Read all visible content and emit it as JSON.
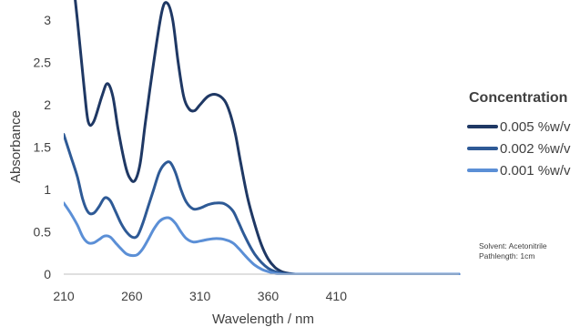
{
  "chart_data": {
    "type": "line",
    "xlabel": "Wavelength / nm",
    "ylabel": "Absorbance",
    "xlim": [
      210,
      500
    ],
    "ylim": [
      0,
      3
    ],
    "x_ticks": [
      210,
      260,
      310,
      360,
      410
    ],
    "y_ticks": [
      0,
      0.5,
      1,
      1.5,
      2,
      2.5,
      3
    ],
    "y_tick_labels": [
      "0",
      "0.5",
      "1",
      "1.5",
      "2",
      "2.5",
      "3"
    ],
    "grid": false,
    "legend": {
      "title": "Concentration",
      "placement": "right"
    },
    "series": [
      {
        "name": "0.005 %w/v",
        "color": "#1f3864",
        "x": [
          210,
          220,
          225,
          228,
          232,
          238,
          242,
          246,
          250,
          255,
          258,
          262,
          266,
          270,
          276,
          282,
          286,
          290,
          294,
          298,
          302,
          306,
          310,
          316,
          322,
          328,
          332,
          336,
          340,
          345,
          350,
          355,
          360,
          365,
          370,
          375,
          380,
          385,
          390,
          400,
          420,
          450,
          480,
          500
        ],
        "y": [
          4.5,
          3.0,
          2.2,
          1.8,
          1.8,
          2.1,
          2.25,
          2.1,
          1.7,
          1.3,
          1.15,
          1.1,
          1.3,
          1.8,
          2.5,
          3.1,
          3.2,
          3.0,
          2.5,
          2.1,
          1.95,
          1.93,
          2.0,
          2.1,
          2.12,
          2.05,
          1.9,
          1.65,
          1.3,
          0.9,
          0.6,
          0.35,
          0.18,
          0.08,
          0.03,
          0.01,
          0.0,
          0.0,
          0.0,
          0.0,
          0.0,
          0.0,
          0.0,
          0.0
        ]
      },
      {
        "name": "0.002 %w/v",
        "color": "#2e5a96",
        "x": [
          210,
          215,
          220,
          224,
          228,
          232,
          236,
          240,
          244,
          248,
          252,
          256,
          260,
          264,
          268,
          272,
          276,
          280,
          284,
          288,
          292,
          296,
          300,
          305,
          310,
          316,
          322,
          328,
          334,
          338,
          342,
          346,
          350,
          355,
          360,
          365,
          370,
          375,
          380,
          390,
          420,
          450,
          480,
          500
        ],
        "y": [
          1.65,
          1.4,
          1.15,
          0.88,
          0.73,
          0.72,
          0.8,
          0.9,
          0.87,
          0.74,
          0.6,
          0.5,
          0.44,
          0.45,
          0.6,
          0.8,
          1.0,
          1.2,
          1.3,
          1.32,
          1.2,
          1.0,
          0.85,
          0.77,
          0.78,
          0.82,
          0.84,
          0.83,
          0.75,
          0.62,
          0.48,
          0.35,
          0.24,
          0.14,
          0.07,
          0.03,
          0.01,
          0.0,
          0.0,
          0.0,
          0.0,
          0.0,
          0.0,
          0.0
        ]
      },
      {
        "name": "0.001 %w/v",
        "color": "#5b8fd6",
        "x": [
          210,
          215,
          220,
          224,
          228,
          232,
          236,
          240,
          244,
          248,
          252,
          256,
          260,
          264,
          268,
          272,
          276,
          280,
          284,
          288,
          292,
          296,
          300,
          305,
          310,
          316,
          322,
          328,
          334,
          338,
          342,
          346,
          350,
          355,
          360,
          365,
          370,
          375,
          380,
          390,
          420,
          450,
          480,
          500
        ],
        "y": [
          0.84,
          0.72,
          0.58,
          0.44,
          0.37,
          0.37,
          0.41,
          0.45,
          0.44,
          0.37,
          0.3,
          0.24,
          0.22,
          0.23,
          0.3,
          0.41,
          0.53,
          0.62,
          0.66,
          0.66,
          0.6,
          0.5,
          0.42,
          0.38,
          0.39,
          0.41,
          0.42,
          0.41,
          0.37,
          0.31,
          0.24,
          0.17,
          0.11,
          0.06,
          0.03,
          0.01,
          0.0,
          0.0,
          0.0,
          0.0,
          0.0,
          0.0,
          0.0,
          0.0
        ]
      }
    ],
    "annotations": [
      "Solvent: Acetonitrile",
      "Pathlength: 1cm"
    ]
  }
}
